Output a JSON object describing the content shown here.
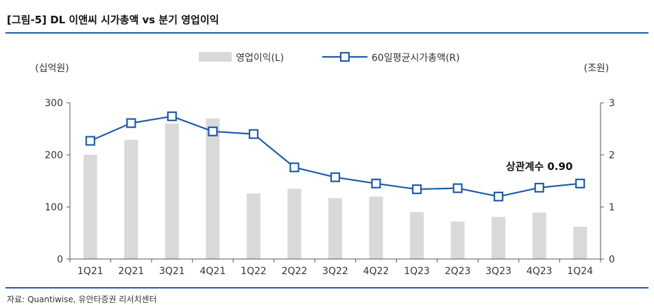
{
  "page": {
    "title": "[그림-5] DL 이앤씨 시가총액 vs 분기 영업이익",
    "source": "자료: Quantiwise, 유안타증권 리서치센터"
  },
  "chart_data": {
    "type": "bar",
    "title": "[그림-5] DL 이앤씨 시가총액 vs 분기 영업이익",
    "categories": [
      "1Q21",
      "2Q21",
      "3Q21",
      "4Q21",
      "1Q22",
      "2Q22",
      "3Q22",
      "4Q22",
      "1Q23",
      "2Q23",
      "3Q23",
      "4Q23",
      "1Q24"
    ],
    "series": [
      {
        "name": "영업이익(L)",
        "kind": "bar",
        "axis": "left",
        "color": "#d9d9d9",
        "values": [
          200,
          229,
          260,
          270,
          126,
          135,
          117,
          120,
          90,
          72,
          81,
          89,
          62
        ]
      },
      {
        "name": "60일평균시가총액(R)",
        "kind": "line",
        "axis": "right",
        "color": "#1f5aa6",
        "values": [
          2.27,
          2.61,
          2.74,
          2.45,
          2.4,
          1.76,
          1.57,
          1.45,
          1.34,
          1.36,
          1.2,
          1.37,
          1.45
        ]
      }
    ],
    "y_left": {
      "label": "(십억원)",
      "range": [
        0,
        300
      ],
      "ticks": [
        "0",
        "100",
        "200",
        "300"
      ]
    },
    "y_right": {
      "label": "(조원)",
      "range": [
        0,
        3
      ],
      "ticks": [
        "0",
        "1",
        "2",
        "3"
      ]
    },
    "legend": {
      "position": "top-center",
      "entries": [
        "영업이익(L)",
        "60일평균시가총액(R)"
      ]
    },
    "annotation": {
      "text": "상관계수 0.90",
      "near_category": "4Q23"
    },
    "grid": false
  }
}
